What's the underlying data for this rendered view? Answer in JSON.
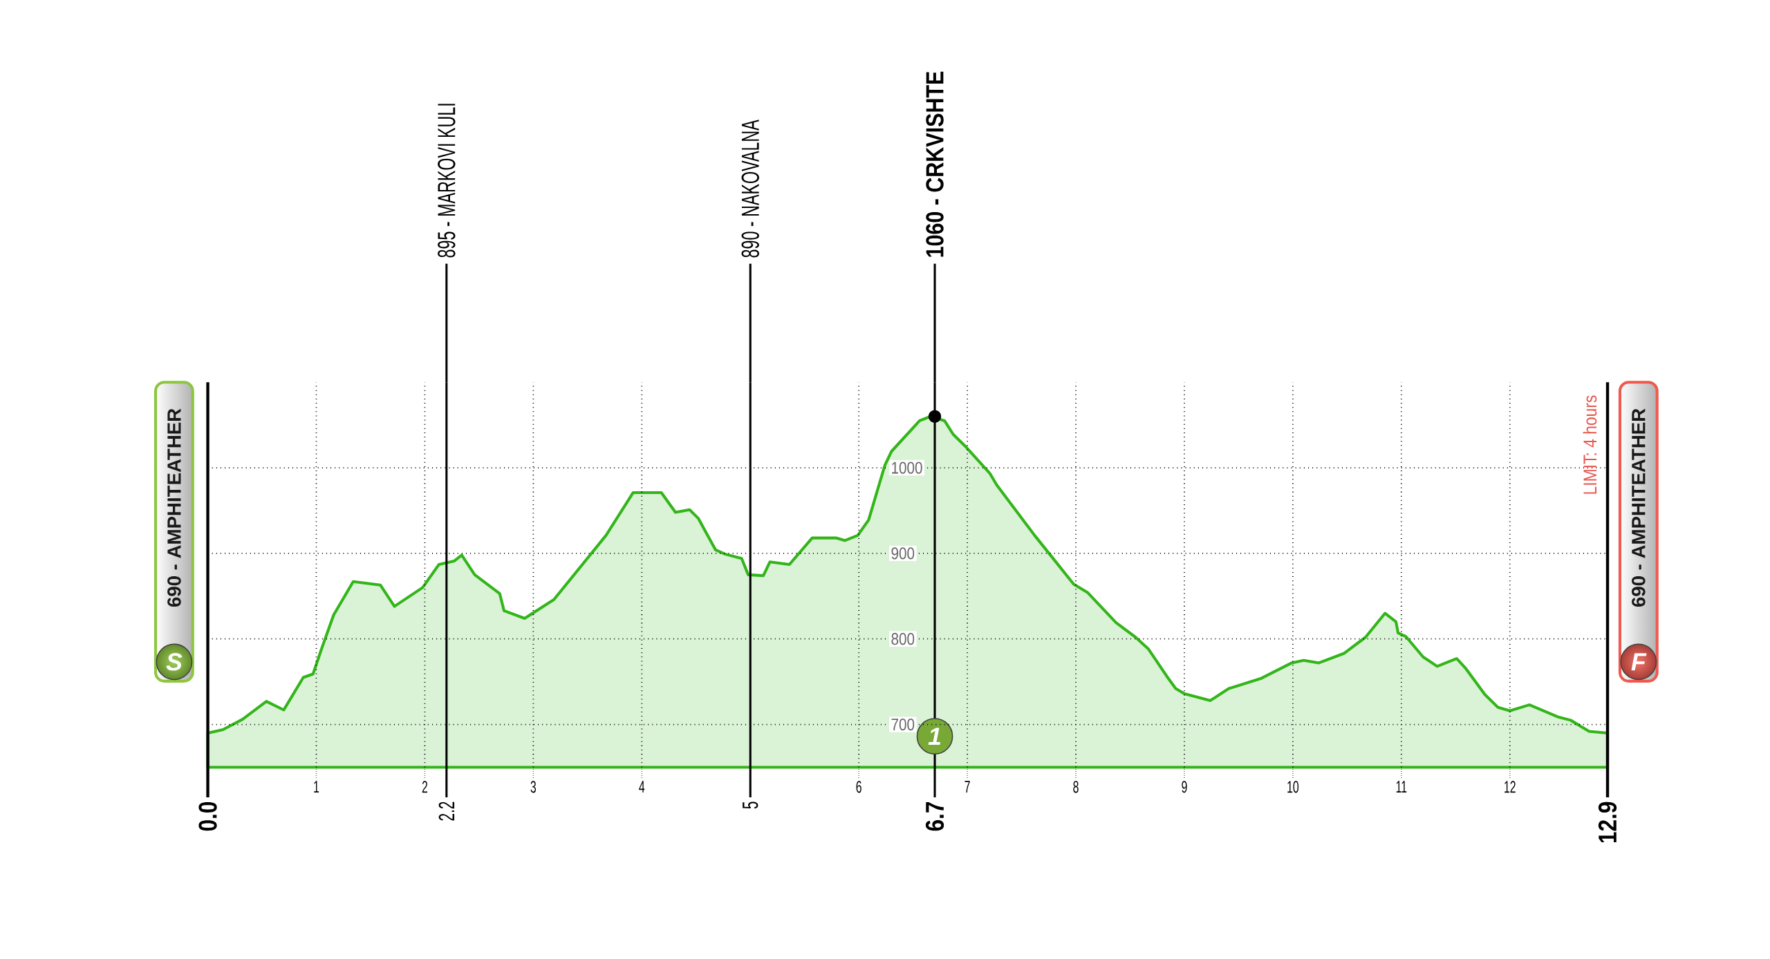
{
  "chart_data": {
    "type": "area",
    "x": [
      0,
      0.14,
      0.32,
      0.54,
      0.7,
      0.88,
      0.97,
      1.05,
      1.16,
      1.34,
      1.59,
      1.72,
      1.98,
      2.13,
      2.27,
      2.34,
      2.46,
      2.69,
      2.73,
      2.92,
      3.19,
      3.67,
      3.88,
      3.92,
      4.18,
      4.31,
      4.44,
      4.52,
      4.68,
      4.77,
      4.92,
      4.98,
      5.12,
      5.18,
      5.36,
      5.57,
      5.79,
      5.87,
      5.99,
      6.09,
      6.24,
      6.3,
      6.56,
      6.66,
      6.79,
      6.87,
      6.99,
      7.21,
      7.27,
      7.62,
      7.98,
      8.11,
      8.37,
      8.55,
      8.67,
      8.84,
      8.92,
      9.0,
      9.24,
      9.41,
      9.71,
      9.99,
      10.1,
      10.24,
      10.47,
      10.67,
      10.85,
      10.95,
      10.97,
      11.04,
      11.2,
      11.33,
      11.51,
      11.59,
      11.77,
      11.89,
      12.0,
      12.18,
      12.44,
      12.56,
      12.73,
      12.9
    ],
    "series": [
      {
        "color": "#33b51a",
        "values": [
          690,
          694,
          706,
          727,
          717,
          755,
          759,
          789,
          828,
          867,
          863,
          838,
          860,
          887,
          891,
          898,
          875,
          853,
          833,
          824,
          846,
          921,
          963,
          971,
          971,
          948,
          951,
          941,
          904,
          899,
          894,
          875,
          874,
          890,
          887,
          918,
          918,
          915,
          921,
          939,
          1003,
          1019,
          1055,
          1060,
          1055,
          1039,
          1024,
          993,
          980,
          921,
          864,
          854,
          819,
          802,
          788,
          756,
          742,
          736,
          728,
          742,
          754,
          772,
          775,
          772,
          783,
          802,
          830,
          820,
          807,
          803,
          779,
          768,
          777,
          766,
          735,
          720,
          716,
          723,
          709,
          705,
          692,
          690
        ]
      },
      {
        "type": "scatter",
        "x": [
          6.7
        ],
        "values": [
          1060
        ],
        "color": "#000000",
        "marker": "circle"
      }
    ],
    "xlim": [
      0,
      12.9
    ],
    "ylim": [
      650,
      1100
    ],
    "xticks": [
      1,
      2,
      3,
      4,
      6,
      7,
      8,
      9,
      10,
      11,
      12
    ],
    "yticks": [
      700,
      800,
      900,
      1000
    ],
    "grid": true,
    "ref_lines": [
      {
        "axis": "x",
        "value": 0,
        "label": "690 - AMPHITEATHER"
      },
      {
        "axis": "x",
        "value": 2.2,
        "label": "895 - MARKOVI KULI"
      },
      {
        "axis": "x",
        "value": 5,
        "label": "890 - NAKOVALNA"
      },
      {
        "axis": "x",
        "value": 6.7,
        "label": "1060 - CRKVISHTE"
      },
      {
        "axis": "x",
        "value": 12.9,
        "label": "690 - AMPHITEATHER"
      }
    ],
    "annotations": [
      "LIMIT: 4 hours",
      {
        "text": "S",
        "x": 0
      },
      {
        "text": "1",
        "x": 6.7
      },
      {
        "text": "F",
        "x": 12.9
      },
      {
        "text": "0.0",
        "x": 0,
        "y": 650
      },
      {
        "text": "2.2",
        "x": 2.2,
        "y": 650
      },
      {
        "text": "5",
        "x": 5,
        "y": 650
      },
      {
        "text": "6.7",
        "x": 6.7,
        "y": 650
      },
      {
        "text": "12.9",
        "x": 12.9,
        "y": 650
      }
    ]
  }
}
